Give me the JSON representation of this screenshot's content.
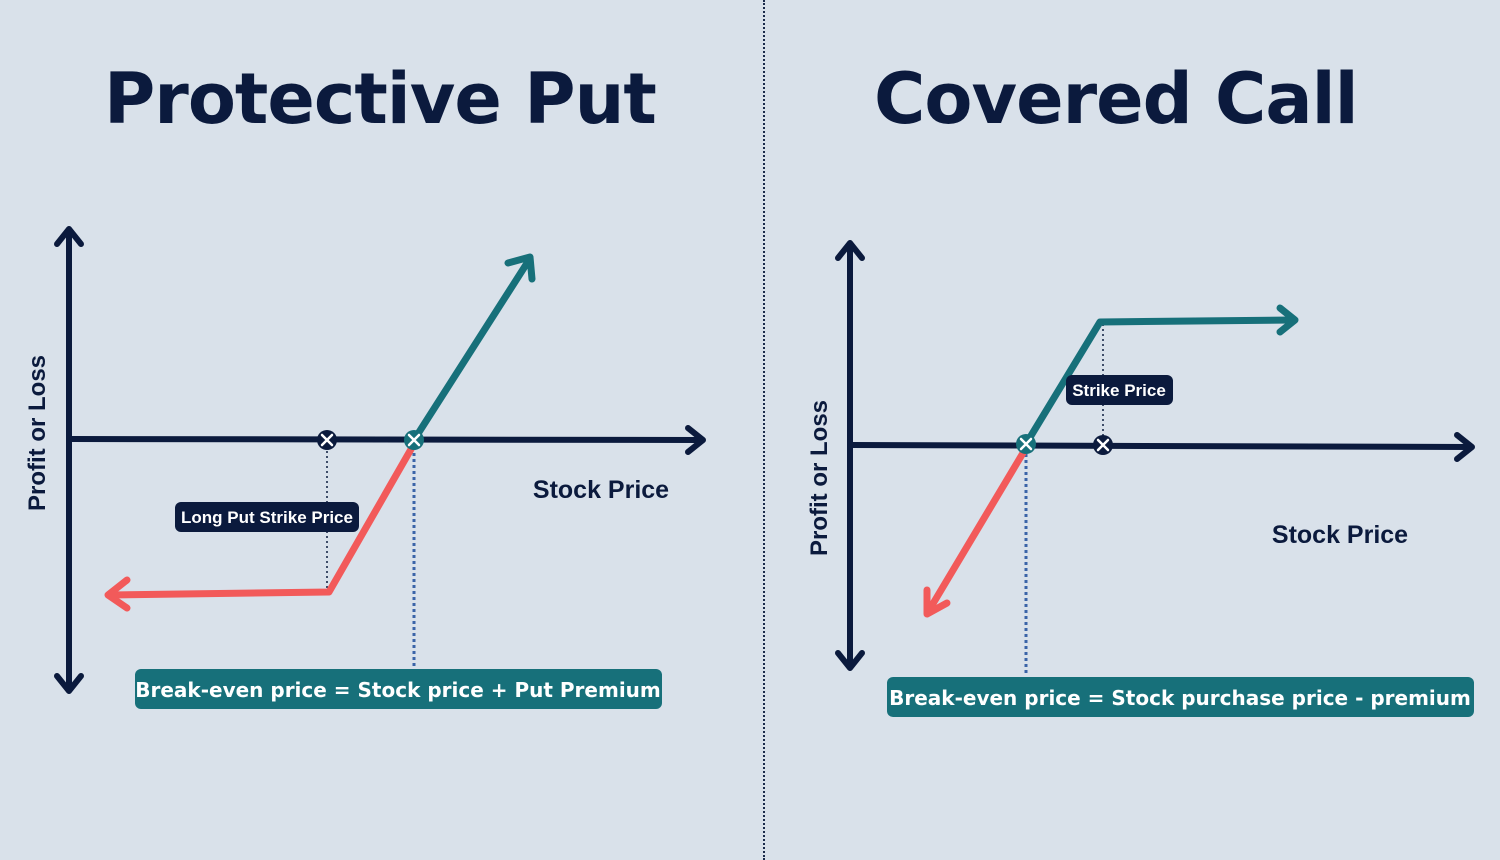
{
  "colors": {
    "background": "#d9e1ea",
    "axis": "#0b1a3d",
    "profit_line": "#17707a",
    "loss_line": "#f25a5a",
    "label_bg": "#0b1a3d",
    "formula_bg": "#17707a",
    "guide_line": "#3a64a8"
  },
  "protective_put": {
    "title": "Protective Put",
    "y_axis_label": "Profit or Loss",
    "x_axis_label": "Stock Price",
    "strike_label": "Long Put Strike Price",
    "formula": "Break-even price = Stock price + Put Premium"
  },
  "covered_call": {
    "title": "Covered Call",
    "y_axis_label": "Profit or Loss",
    "x_axis_label": "Stock Price",
    "strike_label": "Strike Price",
    "formula": "Break-even price = Stock purchase price - premium"
  }
}
